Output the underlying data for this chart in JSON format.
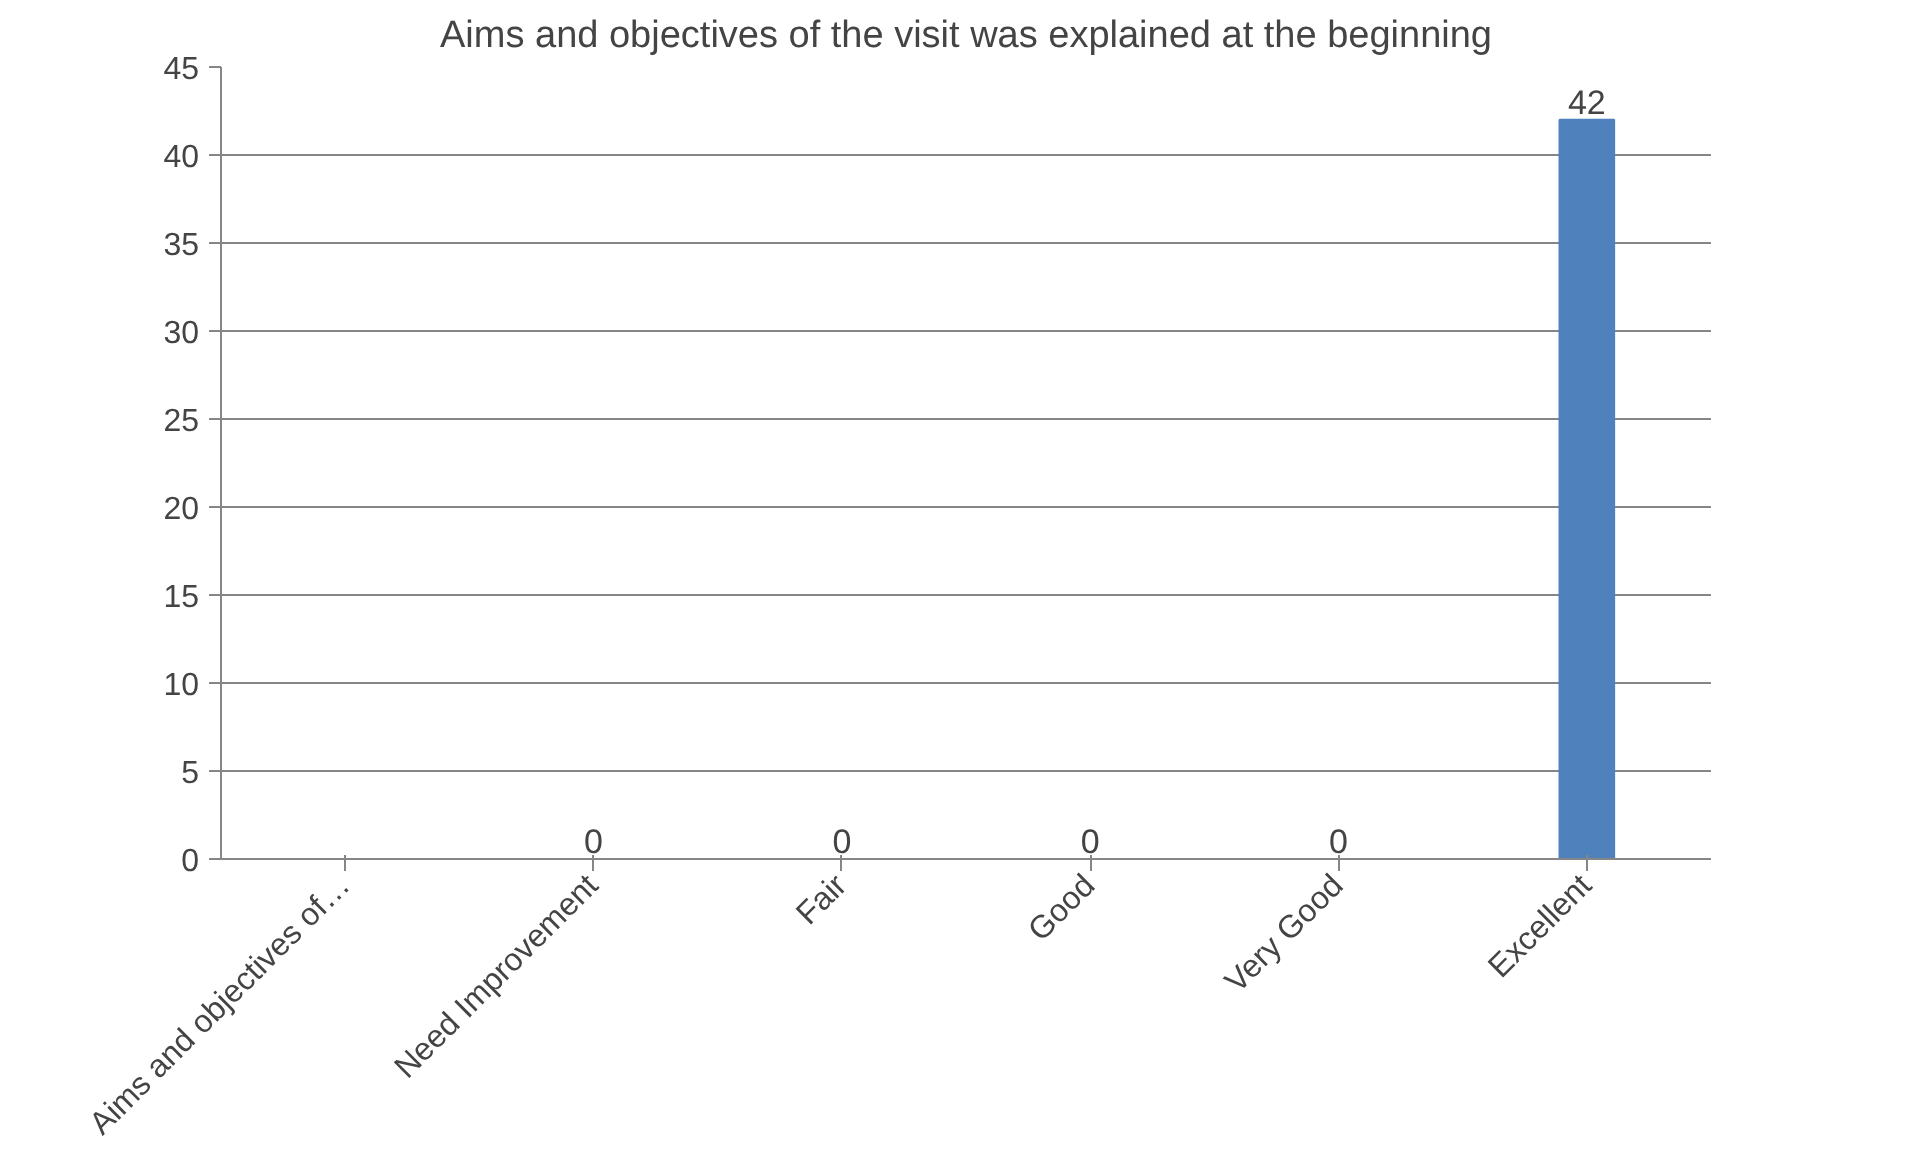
{
  "chart_data": {
    "type": "bar",
    "title": "Aims and objectives of the visit was explained at the beginning",
    "categories": [
      "Aims and objectives of…",
      "Need Improvement",
      "Fair",
      "Good",
      "Very Good",
      "Excellent"
    ],
    "values": [
      null,
      0,
      0,
      0,
      0,
      42
    ],
    "value_labels": [
      null,
      "0",
      "0",
      "0",
      "0",
      "42"
    ],
    "color": "#4f81bd",
    "ylim": [
      0,
      45
    ],
    "yticks": [
      0,
      5,
      10,
      15,
      20,
      25,
      30,
      35,
      40,
      45
    ],
    "grid": "y"
  }
}
